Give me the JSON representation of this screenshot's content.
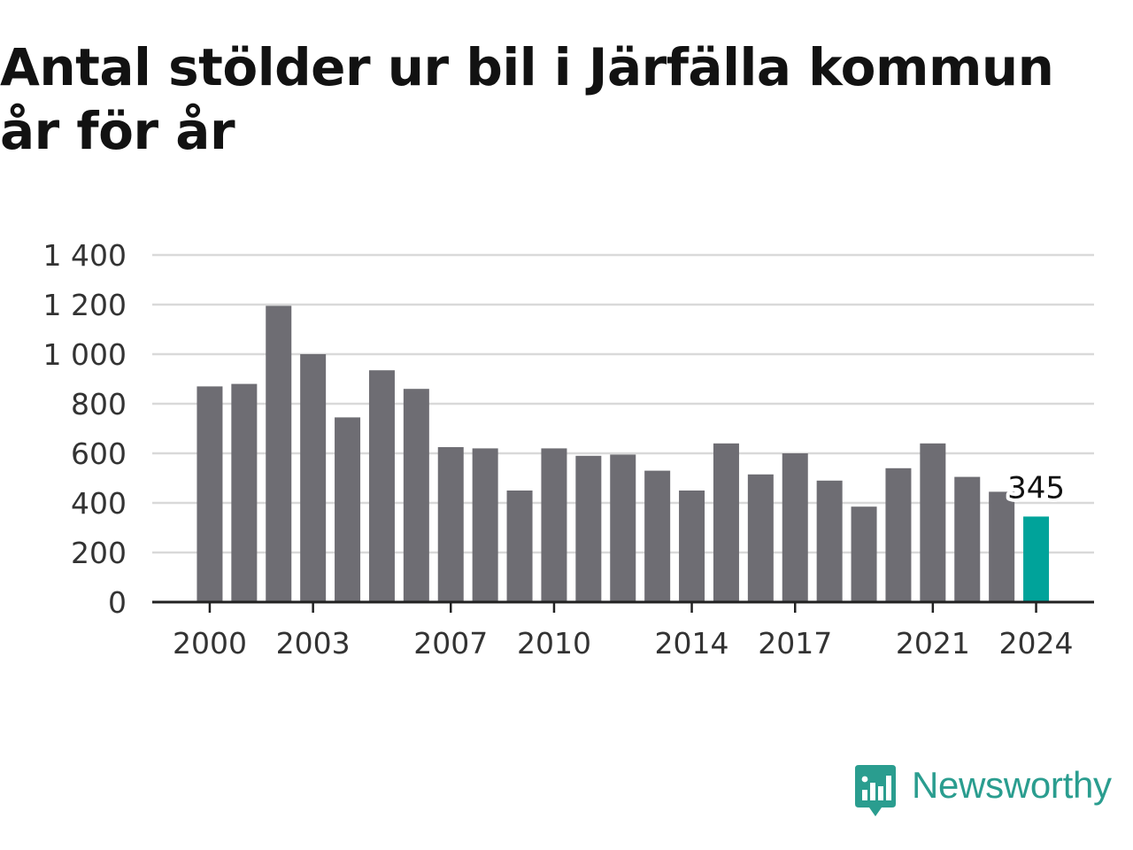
{
  "title": "Antal stölder ur bil i Järfälla kommun år för år",
  "brand": {
    "name": "Newsworthy",
    "icon": "newsworthy-logo-icon"
  },
  "colors": {
    "bar": "#6e6d73",
    "highlight": "#00a39a",
    "grid": "#d9d9d9",
    "axis": "#222222",
    "text": "#333333",
    "brand": "#2a9d8f"
  },
  "chart_data": {
    "type": "bar",
    "title": "Antal stölder ur bil i Järfälla kommun år för år",
    "xlabel": "",
    "ylabel": "",
    "categories": [
      "2000",
      "2001",
      "2002",
      "2003",
      "2004",
      "2005",
      "2006",
      "2007",
      "2008",
      "2009",
      "2010",
      "2011",
      "2012",
      "2013",
      "2014",
      "2015",
      "2016",
      "2017",
      "2018",
      "2019",
      "2020",
      "2021",
      "2022",
      "2023",
      "2024"
    ],
    "values": [
      870,
      880,
      1195,
      1000,
      745,
      935,
      860,
      625,
      620,
      450,
      620,
      590,
      595,
      530,
      450,
      640,
      515,
      600,
      490,
      385,
      540,
      640,
      505,
      445,
      345
    ],
    "highlight_index": 24,
    "highlight_label": "345",
    "ylim": [
      0,
      1400
    ],
    "yticks": [
      0,
      200,
      400,
      600,
      800,
      1000,
      1200,
      1400
    ],
    "ytick_labels": [
      "0",
      "200",
      "400",
      "600",
      "800",
      "1 000",
      "1 200",
      "1 400"
    ],
    "xtick_labels": [
      "2000",
      "2003",
      "2007",
      "2010",
      "2014",
      "2017",
      "2021",
      "2024"
    ],
    "grid": true,
    "legend": "none"
  }
}
